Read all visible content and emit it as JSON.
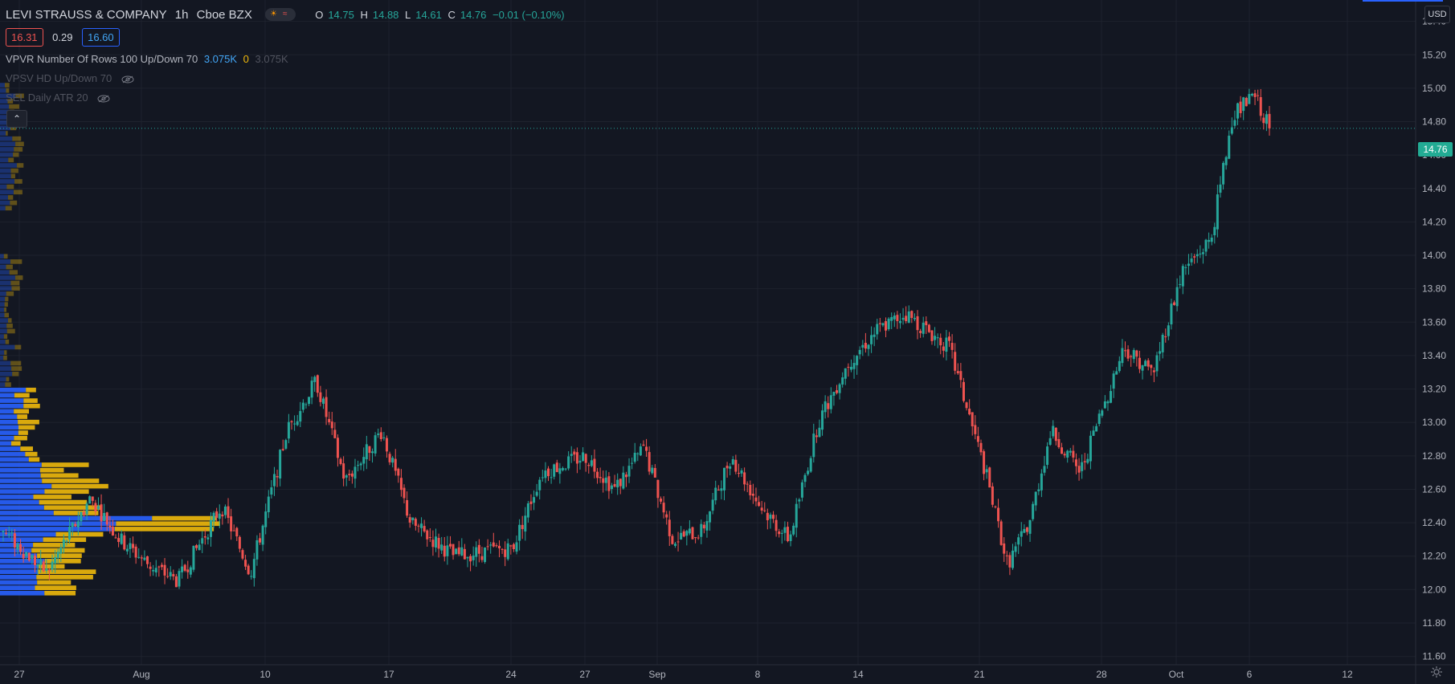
{
  "header": {
    "symbol": "LEVI STRAUSS & COMPANY",
    "interval": "1h",
    "exchange": "Cboe BZX",
    "ohlc": [
      {
        "key": "O",
        "value": "14.75"
      },
      {
        "key": "H",
        "value": "14.88"
      },
      {
        "key": "L",
        "value": "14.61"
      },
      {
        "key": "C",
        "value": "14.76"
      }
    ],
    "change": "−0.01 (−0.10%)"
  },
  "quote": {
    "bid": "16.31",
    "spread": "0.29",
    "ask": "16.60"
  },
  "indicators": {
    "vpvr_name": "VPVR",
    "vpvr_params": "Number Of Rows 100 Up/Down 70",
    "vpvr_up": "3.075K",
    "vpvr_down": "0",
    "vpvr_total": "3.075K",
    "vpsv": "VPSV HD Up/Down 70",
    "atr": "SEL Daily ATR 20"
  },
  "price_scale": {
    "currency": "USD",
    "last_price_label": "14.76",
    "tick_labels": [
      "15.40",
      "15.20",
      "15.00",
      "14.80",
      "14.60",
      "14.40",
      "14.20",
      "14.00",
      "13.80",
      "13.60",
      "13.40",
      "13.20",
      "13.00",
      "12.80",
      "12.60",
      "12.40",
      "12.20",
      "12.00",
      "11.80",
      "11.60"
    ]
  },
  "colors": {
    "background": "#131722",
    "grid": "#1e222d",
    "up": "#26a69a",
    "down": "#ef5350",
    "volume_up": "#2962ff",
    "volume_down": "#f0b90b",
    "last_price": "#22ab94"
  },
  "chart_data": {
    "type": "candlestick",
    "title": "LEVI STRAUSS & COMPANY · 1h · Cboe BZX",
    "x_tick_labels": [
      "27",
      "Aug",
      "10",
      "17",
      "24",
      "27",
      "Sep",
      "8",
      "14",
      "21",
      "28",
      "Oct",
      "6",
      "12"
    ],
    "ylim": [
      11.55,
      15.48
    ],
    "grid": true,
    "price_path_anchors": [
      {
        "at": 0.0,
        "price": 12.35
      },
      {
        "at": 0.03,
        "price": 12.1
      },
      {
        "at": 0.06,
        "price": 12.55
      },
      {
        "at": 0.08,
        "price": 12.3
      },
      {
        "at": 0.1,
        "price": 12.15
      },
      {
        "at": 0.12,
        "price": 12.05
      },
      {
        "at": 0.15,
        "price": 12.5
      },
      {
        "at": 0.17,
        "price": 12.1
      },
      {
        "at": 0.195,
        "price": 12.95
      },
      {
        "at": 0.215,
        "price": 13.25
      },
      {
        "at": 0.235,
        "price": 12.65
      },
      {
        "at": 0.26,
        "price": 12.95
      },
      {
        "at": 0.28,
        "price": 12.4
      },
      {
        "at": 0.31,
        "price": 12.2
      },
      {
        "at": 0.35,
        "price": 12.25
      },
      {
        "at": 0.37,
        "price": 12.7
      },
      {
        "at": 0.4,
        "price": 12.8
      },
      {
        "at": 0.42,
        "price": 12.6
      },
      {
        "at": 0.44,
        "price": 12.85
      },
      {
        "at": 0.46,
        "price": 12.3
      },
      {
        "at": 0.48,
        "price": 12.35
      },
      {
        "at": 0.5,
        "price": 12.8
      },
      {
        "at": 0.52,
        "price": 12.5
      },
      {
        "at": 0.54,
        "price": 12.3
      },
      {
        "at": 0.56,
        "price": 13.0
      },
      {
        "at": 0.58,
        "price": 13.35
      },
      {
        "at": 0.6,
        "price": 13.55
      },
      {
        "at": 0.62,
        "price": 13.65
      },
      {
        "at": 0.65,
        "price": 13.45
      },
      {
        "at": 0.675,
        "price": 12.7
      },
      {
        "at": 0.69,
        "price": 12.15
      },
      {
        "at": 0.705,
        "price": 12.4
      },
      {
        "at": 0.72,
        "price": 12.95
      },
      {
        "at": 0.74,
        "price": 12.7
      },
      {
        "at": 0.77,
        "price": 13.45
      },
      {
        "at": 0.79,
        "price": 13.3
      },
      {
        "at": 0.81,
        "price": 13.9
      },
      {
        "at": 0.83,
        "price": 14.1
      },
      {
        "at": 0.845,
        "price": 14.85
      },
      {
        "at": 0.86,
        "price": 14.95
      },
      {
        "at": 0.87,
        "price": 14.76
      }
    ],
    "volume_profile_note": "VPVR horizontal bars on left edge, up (blue) and down (orange) volume per price row"
  }
}
